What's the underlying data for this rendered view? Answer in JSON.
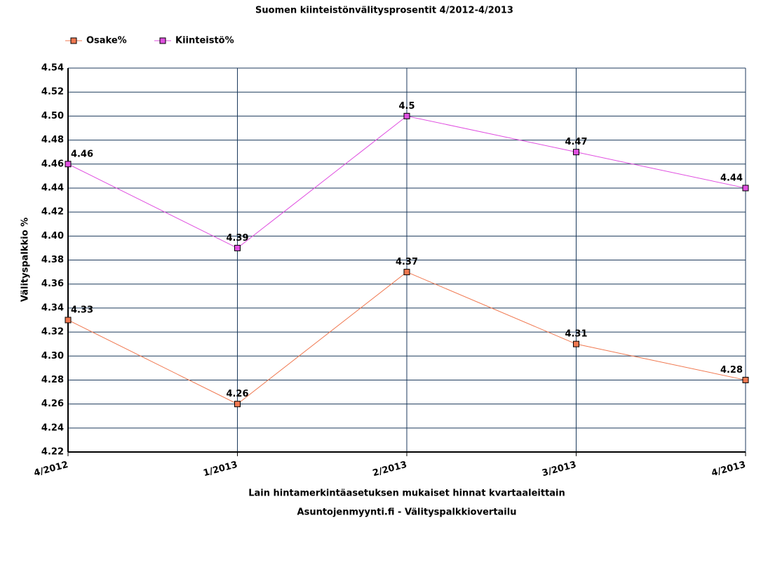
{
  "chart_data": {
    "type": "line",
    "title": "Suomen kiinteistönvälitysprosentit 4/2012-4/2013",
    "x_label": "Lain hintamerkintäasetuksen mukaiset hinnat kvartaaleittain",
    "source": "Asuntojenmyynti.fi - Välityspalkkiovertailu",
    "y_label": "Välityspalkkio %",
    "categories": [
      "4/2012",
      "1/2013",
      "2/2013",
      "3/2013",
      "4/2013"
    ],
    "series": [
      {
        "name": "Osake%",
        "color": "#f07850",
        "values": [
          4.33,
          4.26,
          4.37,
          4.31,
          4.28
        ]
      },
      {
        "name": "Kiinteistö%",
        "color": "#e050e0",
        "values": [
          4.46,
          4.39,
          4.5,
          4.47,
          4.44
        ]
      }
    ],
    "ylim": [
      4.22,
      4.54
    ],
    "yticks": [
      4.22,
      4.24,
      4.26,
      4.28,
      {
        "value": 4.3,
        "label": "4.30"
      },
      4.32,
      4.34,
      4.36,
      4.38,
      {
        "value": 4.4,
        "label": "4.40"
      },
      4.42,
      4.44,
      4.46,
      4.48,
      {
        "value": 4.5,
        "label": "4.50"
      },
      4.52,
      4.54
    ],
    "grid": true,
    "legend": "top-left",
    "grid_color": "#1c3a5c"
  }
}
